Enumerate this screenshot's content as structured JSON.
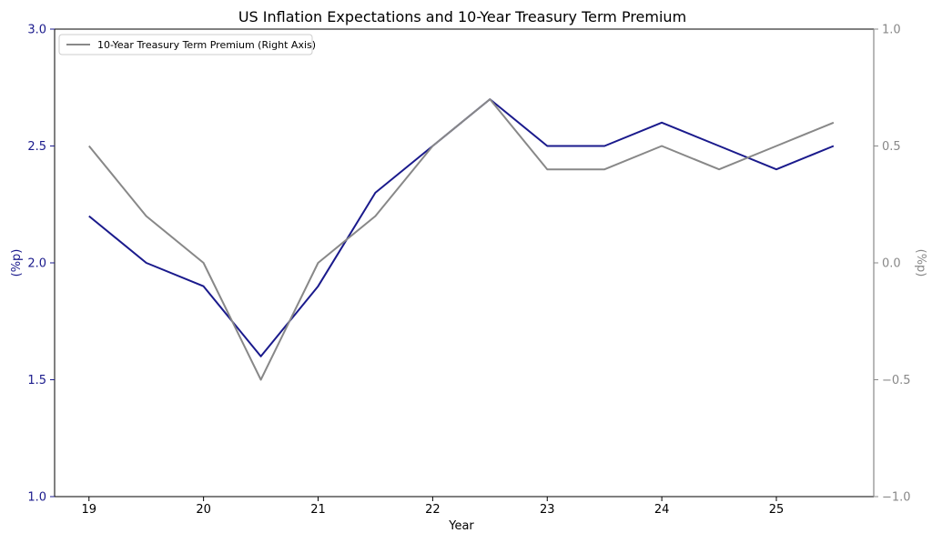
{
  "chart_data": {
    "type": "line",
    "title": "US Inflation Expectations and 10-Year Treasury Term Premium",
    "xlabel": "Year",
    "ylabel_left": "(%p)",
    "ylabel_right": "(%p)",
    "x": [
      19,
      19.5,
      20,
      20.5,
      21,
      21.5,
      22,
      22.5,
      23,
      23.5,
      24,
      24.5,
      25,
      25.5
    ],
    "x_ticks": [
      "19",
      "20",
      "21",
      "22",
      "23",
      "24",
      "25"
    ],
    "x_tick_values": [
      19,
      20,
      21,
      22,
      23,
      24,
      25
    ],
    "xlim": [
      18.7,
      25.85
    ],
    "ylim_left": [
      1.0,
      3.0
    ],
    "ylim_right": [
      -1.0,
      1.0
    ],
    "y_ticks_left": [
      "1.0",
      "1.5",
      "2.0",
      "2.5",
      "3.0"
    ],
    "y_tick_values_left": [
      1.0,
      1.5,
      2.0,
      2.5,
      3.0
    ],
    "y_ticks_right": [
      "−1.0",
      "−0.5",
      "0.0",
      "0.5",
      "1.0"
    ],
    "y_tick_values_right": [
      -1.0,
      -0.5,
      0.0,
      0.5,
      1.0
    ],
    "grid": false,
    "legend_position": "top-left",
    "series": [
      {
        "axis": "left",
        "color": "#1a1a8c",
        "values": [
          2.2,
          2.0,
          1.9,
          1.6,
          1.9,
          2.3,
          2.5,
          2.7,
          2.5,
          2.5,
          2.6,
          2.5,
          2.4,
          2.5
        ]
      },
      {
        "name": "10-Year Treasury Term Premium (Right Axis)",
        "axis": "right",
        "color": "#888888",
        "values": [
          0.5,
          0.2,
          0.0,
          -0.5,
          0.0,
          0.2,
          0.5,
          0.7,
          0.4,
          0.4,
          0.5,
          0.4,
          0.5,
          0.6
        ]
      }
    ],
    "left_axis_color": "#1a1a8c",
    "right_axis_color": "#888888"
  }
}
